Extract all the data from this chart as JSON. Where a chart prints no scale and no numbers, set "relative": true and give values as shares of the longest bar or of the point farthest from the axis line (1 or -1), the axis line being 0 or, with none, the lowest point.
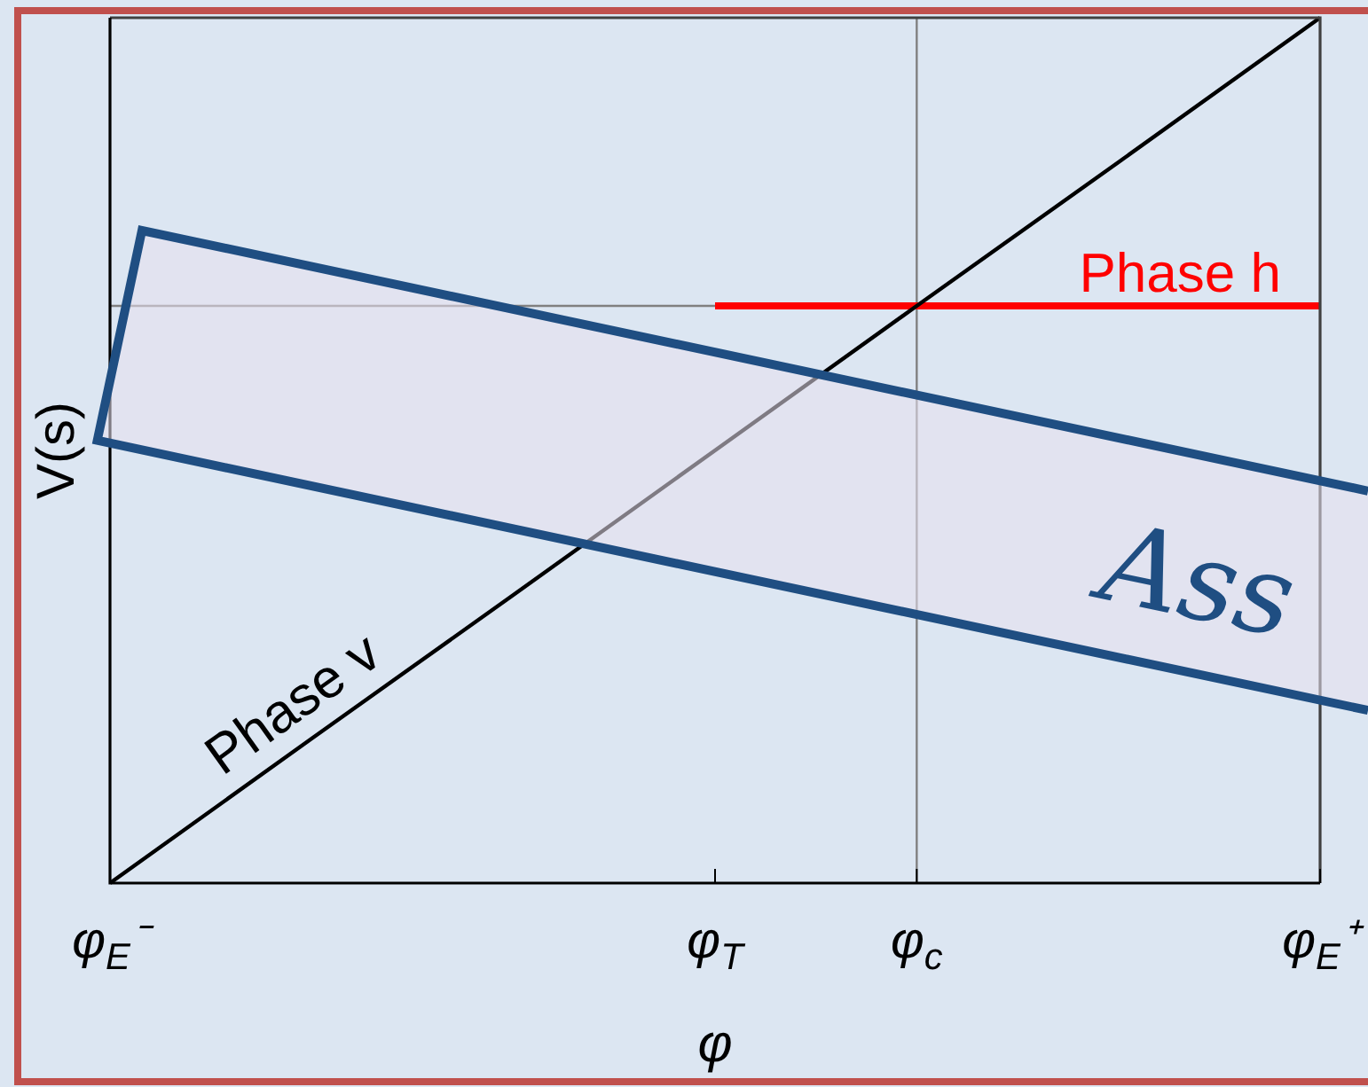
{
  "chart_data": {
    "type": "line",
    "xlabel": "φ",
    "ylabel": "V(s)",
    "annotations": [
      "Ass"
    ],
    "categories": [
      "φ$_{E}$⁻",
      null,
      null,
      "φ$_{T}$",
      "φ$_{c}$",
      null,
      "φ$_{E}$⁺"
    ],
    "relative": true,
    "series": [
      {
        "name": "Phase v",
        "color": "#000000",
        "values": [
          0,
          0.167,
          0.333,
          0.5,
          0.667,
          0.833,
          1
        ]
      },
      {
        "name": "Phase h",
        "color": "#ff0000",
        "values": [
          null,
          null,
          null,
          0.667,
          0.667,
          0.667,
          0.667
        ]
      }
    ],
    "ref_lines": [
      {
        "axis": "x",
        "value": "φ$_{c}$",
        "color": "#808080"
      },
      {
        "axis": "y",
        "value": 0.667,
        "color": "#808080"
      }
    ]
  }
}
